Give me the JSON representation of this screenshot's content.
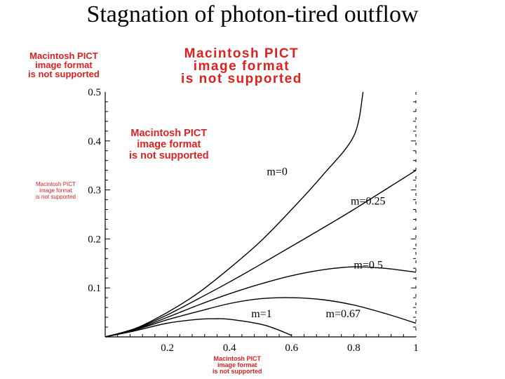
{
  "title": "Stagnation of photon-tired outflow",
  "placeholders": {
    "top_left": [
      "Macintosh PICT",
      "image format",
      "is not supported"
    ],
    "top_center": [
      "Macintosh PICT",
      "image format",
      "is not supported"
    ],
    "mid_plot": [
      "Macintosh PICT",
      "image format",
      "is not supported"
    ],
    "left_axis": [
      "Macintosh PICT",
      "image format",
      "is not supported"
    ],
    "bottom_axis": [
      "Macintosh PICT",
      "image format",
      "is not supported"
    ]
  },
  "chart_data": {
    "type": "line",
    "xlim": [
      0,
      1
    ],
    "ylim": [
      0,
      0.5
    ],
    "x_ticks": [
      {
        "value": 0.2,
        "label": "0.2"
      },
      {
        "value": 0.4,
        "label": "0.4"
      },
      {
        "value": 0.6,
        "label": "0.6"
      },
      {
        "value": 0.8,
        "label": "0.8"
      },
      {
        "value": 1.0,
        "label": "1"
      }
    ],
    "y_ticks": [
      {
        "value": 0.1,
        "label": "0.1"
      },
      {
        "value": 0.2,
        "label": "0.2"
      },
      {
        "value": 0.3,
        "label": "0.3"
      },
      {
        "value": 0.4,
        "label": "0.4"
      },
      {
        "value": 0.5,
        "label": "0.5"
      }
    ],
    "series": [
      {
        "name": "m=0",
        "x": [
          0,
          0.1,
          0.2,
          0.3,
          0.4,
          0.5,
          0.6,
          0.7,
          0.8,
          0.83
        ],
        "y": [
          0,
          0.018,
          0.05,
          0.09,
          0.14,
          0.195,
          0.26,
          0.33,
          0.41,
          0.5
        ]
      },
      {
        "name": "m=0.25",
        "x": [
          0,
          0.1,
          0.2,
          0.3,
          0.4,
          0.5,
          0.6,
          0.7,
          0.8,
          0.9,
          1.0
        ],
        "y": [
          0,
          0.017,
          0.045,
          0.078,
          0.112,
          0.148,
          0.185,
          0.222,
          0.26,
          0.3,
          0.34
        ]
      },
      {
        "name": "m=0.5",
        "x": [
          0,
          0.1,
          0.2,
          0.3,
          0.4,
          0.5,
          0.6,
          0.7,
          0.8,
          0.9,
          1.0
        ],
        "y": [
          0,
          0.016,
          0.04,
          0.065,
          0.088,
          0.108,
          0.125,
          0.137,
          0.143,
          0.14,
          0.132
        ]
      },
      {
        "name": "m=0.67",
        "x": [
          0,
          0.1,
          0.2,
          0.3,
          0.4,
          0.5,
          0.6,
          0.7,
          0.8,
          0.9,
          1.0
        ],
        "y": [
          0,
          0.015,
          0.035,
          0.052,
          0.068,
          0.078,
          0.08,
          0.076,
          0.065,
          0.048,
          0.028
        ]
      },
      {
        "name": "m=1",
        "x": [
          0,
          0.1,
          0.2,
          0.3,
          0.35,
          0.4,
          0.5,
          0.55,
          0.6
        ],
        "y": [
          0,
          0.013,
          0.028,
          0.036,
          0.037,
          0.036,
          0.026,
          0.016,
          0.003
        ]
      }
    ],
    "annotations": [
      {
        "text": "m=0",
        "x": 0.52,
        "y": 0.33
      },
      {
        "text": "m=0.25",
        "x": 0.79,
        "y": 0.27
      },
      {
        "text": "m=0.5",
        "x": 0.8,
        "y": 0.14
      },
      {
        "text": "m=0.67",
        "x": 0.71,
        "y": 0.04
      },
      {
        "text": "m=1",
        "x": 0.47,
        "y": 0.04
      }
    ]
  }
}
